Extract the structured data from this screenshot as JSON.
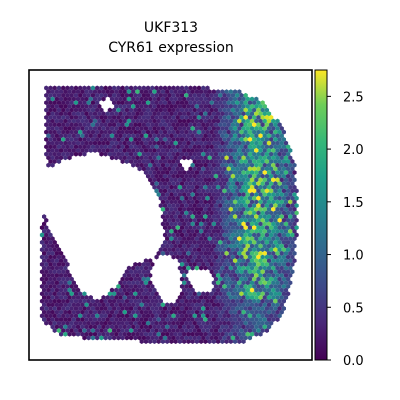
{
  "chart_data": {
    "type": "scatter",
    "title": "UKF313",
    "subtitle": "CYR61 expression",
    "xlabel": "",
    "ylabel": "",
    "grid": false,
    "axis_ticks_visible": false,
    "point_shape": "hexagon",
    "colormap": "viridis",
    "colorbar": {
      "label": "",
      "placement": "right",
      "range": [
        0,
        2.75
      ],
      "ticks": [
        0.0,
        0.5,
        1.0,
        1.5,
        2.0,
        2.5
      ],
      "tick_labels": [
        "0.0",
        "0.5",
        "1.0",
        "1.5",
        "2.0",
        "2.5"
      ]
    },
    "spatial_pattern": {
      "description_level": "summary",
      "tissue_region": "irregular tissue section with a large empty lumen in the left-center",
      "high_expression_region": "right edge band",
      "background_level": 0.1,
      "hotspot_level": 2.5
    }
  }
}
